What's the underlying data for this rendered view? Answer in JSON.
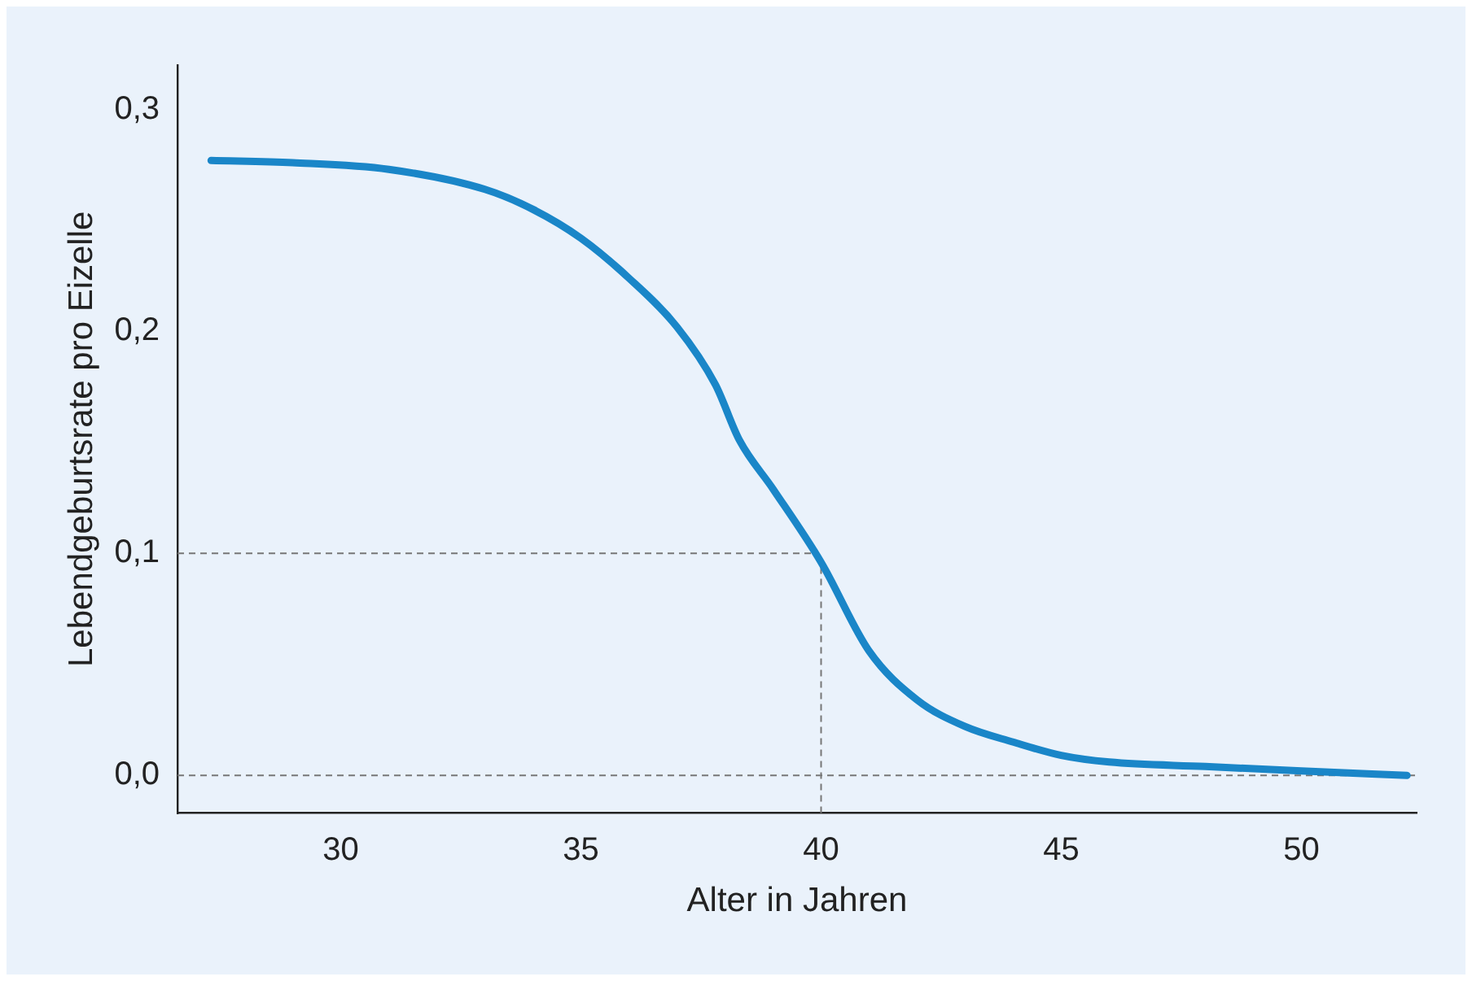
{
  "chart_data": {
    "type": "line",
    "xlabel": "Alter in Jahren",
    "ylabel": "Lebendgeburtsrate pro Eizelle",
    "xlim": [
      26.6,
      52.4
    ],
    "xticks": [
      30,
      35,
      40,
      45,
      50
    ],
    "ylim": [
      -0.017,
      0.32
    ],
    "yticks": [
      {
        "value": 0,
        "label": "0,0"
      },
      {
        "value": 0.1,
        "label": "0,1"
      },
      {
        "value": 0.2,
        "label": "0,2"
      },
      {
        "value": 0.3,
        "label": "0,3"
      }
    ],
    "grid": false,
    "legend": false,
    "marker": "none",
    "line_style": "solid",
    "series": [
      {
        "color": "#1a86c8",
        "x": [
          27.3,
          29,
          31,
          33,
          34,
          35,
          36,
          37,
          37.8,
          38.3,
          39,
          40,
          41,
          42,
          43,
          44,
          45,
          46,
          48,
          50,
          52.2
        ],
        "values": [
          0.277,
          0.276,
          0.273,
          0.264,
          0.255,
          0.242,
          0.224,
          0.202,
          0.176,
          0.151,
          0.129,
          0.096,
          0.056,
          0.034,
          0.022,
          0.015,
          0.009,
          0.006,
          0.004,
          0.002,
          0
        ]
      }
    ],
    "ref_lines": [
      {
        "axis": "y",
        "value": 0.1,
        "color": "#777777",
        "line_style": "dashed"
      },
      {
        "axis": "x",
        "value": 40,
        "color": "#777777",
        "line_style": "dashed"
      },
      {
        "axis": "y",
        "value": 0,
        "color": "#777777",
        "line_style": "dashed"
      }
    ]
  }
}
